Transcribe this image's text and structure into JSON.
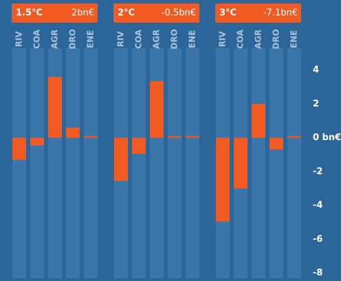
{
  "chart_data": [
    {
      "type": "bar",
      "title": "1.5°C",
      "subtitle": "2bn€",
      "categories": [
        "RIV",
        "COA",
        "AGR",
        "DRO",
        "ENE"
      ],
      "values": [
        -1.3,
        -0.45,
        3.6,
        0.6,
        0.1
      ],
      "color": "#f15a22",
      "ylim": [
        -8.3,
        5.3
      ]
    },
    {
      "type": "bar",
      "title": "2°C",
      "subtitle": "-0.5bn€",
      "categories": [
        "RIV",
        "COA",
        "AGR",
        "DRO",
        "ENE"
      ],
      "values": [
        -2.55,
        -0.95,
        3.35,
        0.1,
        0.1
      ],
      "color": "#f15a22",
      "ylim": [
        -8.3,
        5.3
      ]
    },
    {
      "type": "bar",
      "title": "3°C",
      "subtitle": "-7.1bn€",
      "categories": [
        "RIV",
        "COA",
        "AGR",
        "DRO",
        "ENE"
      ],
      "values": [
        -4.95,
        -3.0,
        2.0,
        -0.7,
        0.1
      ],
      "color": "#f15a22",
      "ylim": [
        -8.3,
        5.3
      ],
      "yticks": [
        4,
        2,
        {
          "value": 0,
          "label": "0 bn€"
        },
        -2,
        -4,
        -6,
        -8
      ]
    }
  ]
}
